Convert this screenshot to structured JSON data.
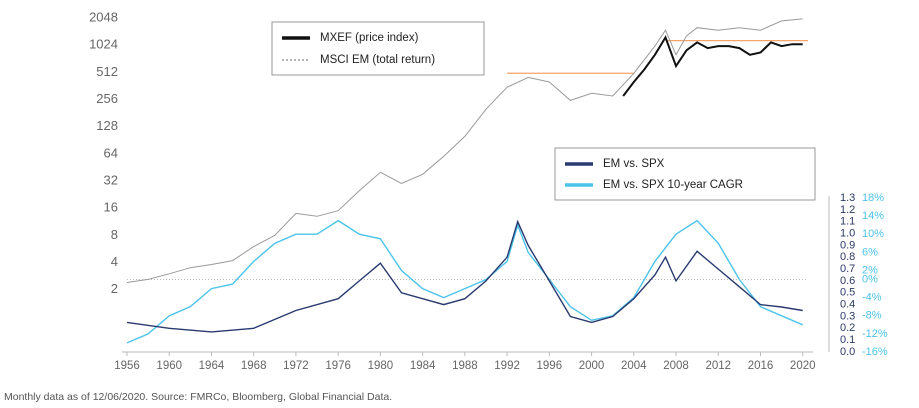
{
  "chart_data": {
    "type": "line",
    "xlim": [
      1956,
      2020.5
    ],
    "xticks": [
      1956,
      1960,
      1964,
      1968,
      1972,
      1976,
      1980,
      1984,
      1988,
      1992,
      1996,
      2000,
      2004,
      2008,
      2012,
      2016,
      2020
    ],
    "ylim": [
      0.5,
      2048
    ],
    "yticks": [
      2,
      4,
      8,
      16,
      32,
      64,
      128,
      256,
      512,
      1024,
      2048
    ],
    "log_scale": true,
    "y2lim": [
      0,
      1.3
    ],
    "y2ticks": [
      {
        "value": 0,
        "label": "0.0"
      },
      0.1,
      0.2,
      0.3,
      0.4,
      0.5,
      0.6,
      0.7,
      0.8,
      0.9,
      {
        "value": 1,
        "label": "1.0"
      },
      1.1,
      1.2,
      1.3
    ],
    "y3lim": [
      -16,
      18
    ],
    "y3ticks": [
      {
        "value": -16,
        "label": "-16%"
      },
      {
        "value": -12,
        "label": "-12%"
      },
      {
        "value": -8,
        "label": "-8%"
      },
      {
        "value": -4,
        "label": "-4%"
      },
      {
        "value": 0,
        "label": "0%"
      },
      {
        "value": 2,
        "label": "2%"
      },
      {
        "value": 6,
        "label": "6%"
      },
      {
        "value": 10,
        "label": "10%"
      },
      {
        "value": 14,
        "label": "14%"
      },
      {
        "value": 18,
        "label": "18%"
      }
    ],
    "series": [
      {
        "name": "MXEF (price index)",
        "color": "#111111",
        "axis": "y",
        "x": [
          2003,
          2004,
          2005,
          2006,
          2007,
          2008,
          2009,
          2010,
          2011,
          2012,
          2013,
          2014,
          2015,
          2016,
          2017,
          2018,
          2019,
          2020
        ],
        "values": [
          280,
          400,
          550,
          800,
          1250,
          600,
          900,
          1100,
          950,
          1000,
          1000,
          950,
          800,
          850,
          1100,
          1000,
          1050,
          1050
        ]
      },
      {
        "name": "MSCI EM (total return)",
        "color": "#9a9a9a",
        "axis": "y",
        "x": [
          1956,
          1958,
          1960,
          1962,
          1964,
          1966,
          1968,
          1970,
          1972,
          1974,
          1976,
          1978,
          1980,
          1982,
          1984,
          1986,
          1988,
          1990,
          1992,
          1994,
          1996,
          1998,
          2000,
          2002,
          2004,
          2006,
          2007,
          2008,
          2009,
          2010,
          2012,
          2014,
          2016,
          2018,
          2020
        ],
        "values": [
          2.4,
          2.6,
          3.0,
          3.5,
          3.8,
          4.2,
          6,
          8,
          14,
          13,
          15,
          25,
          40,
          30,
          38,
          60,
          100,
          200,
          350,
          450,
          400,
          250,
          300,
          280,
          500,
          1000,
          1500,
          800,
          1300,
          1600,
          1500,
          1600,
          1500,
          1900,
          2000
        ]
      },
      {
        "name": "EM vs. SPX",
        "color": "#283a70",
        "axis": "y2",
        "x": [
          1956,
          1960,
          1964,
          1968,
          1972,
          1976,
          1978,
          1980,
          1982,
          1984,
          1986,
          1988,
          1990,
          1992,
          1993,
          1994,
          1996,
          1998,
          2000,
          2002,
          2004,
          2006,
          2007,
          2008,
          2010,
          2012,
          2014,
          2016,
          2018,
          2020
        ],
        "values": [
          0.25,
          0.2,
          0.17,
          0.2,
          0.35,
          0.45,
          0.6,
          0.75,
          0.5,
          0.45,
          0.4,
          0.45,
          0.6,
          0.8,
          1.1,
          0.9,
          0.6,
          0.3,
          0.25,
          0.3,
          0.45,
          0.65,
          0.8,
          0.6,
          0.85,
          0.7,
          0.55,
          0.4,
          0.38,
          0.35
        ]
      },
      {
        "name": "EM vs. SPX 10-year CAGR",
        "color": "#4cc3ea",
        "axis": "y3",
        "x": [
          1956,
          1958,
          1960,
          1962,
          1964,
          1966,
          1968,
          1970,
          1972,
          1974,
          1976,
          1978,
          1980,
          1982,
          1984,
          1986,
          1988,
          1990,
          1992,
          1993,
          1994,
          1996,
          1998,
          2000,
          2002,
          2004,
          2006,
          2008,
          2010,
          2012,
          2014,
          2016,
          2018,
          2020
        ],
        "values": [
          -14,
          -12,
          -8,
          -6,
          -2,
          -1,
          4,
          8,
          10,
          10,
          13,
          10,
          9,
          2,
          -2,
          -4,
          -2,
          0,
          4,
          12,
          6,
          0,
          -6,
          -9,
          -8,
          -4,
          4,
          10,
          13,
          8,
          0,
          -6,
          -8,
          -10
        ]
      }
    ],
    "reference_lines": [
      {
        "value": 500,
        "x": [
          1992,
          2004
        ],
        "color": "#f4a46a"
      },
      {
        "value": 1150,
        "x": [
          2007,
          2020.5
        ],
        "color": "#f4a46a"
      }
    ],
    "note": "Monthly data as of 12/06/2020. Source: FMRCo, Bloomberg, Global Financial Data."
  }
}
